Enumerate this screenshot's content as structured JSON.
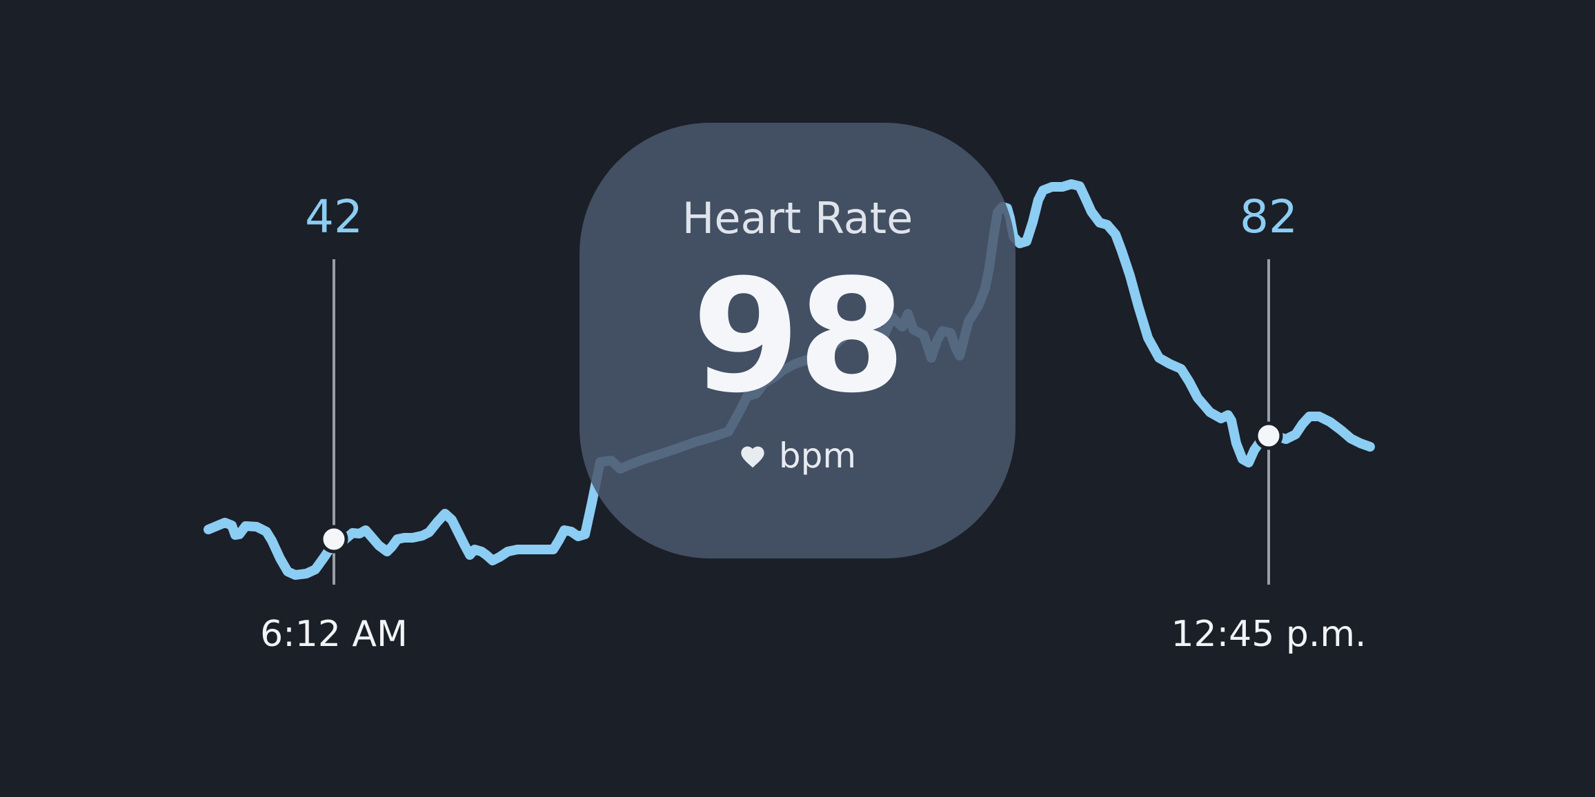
{
  "card": {
    "title": "Heart Rate",
    "value": "98",
    "unit": "bpm",
    "icon": "heart-icon"
  },
  "markers": [
    {
      "value": "42",
      "time": "6:12 AM"
    },
    {
      "value": "82",
      "time": "12:45 p.m."
    }
  ],
  "colors": {
    "background": "#1b1f27",
    "line": "#8ccdf3",
    "marker_line": "#9a9ea6",
    "marker_dot": "#f4f6f9",
    "card": "#4a576c"
  }
}
